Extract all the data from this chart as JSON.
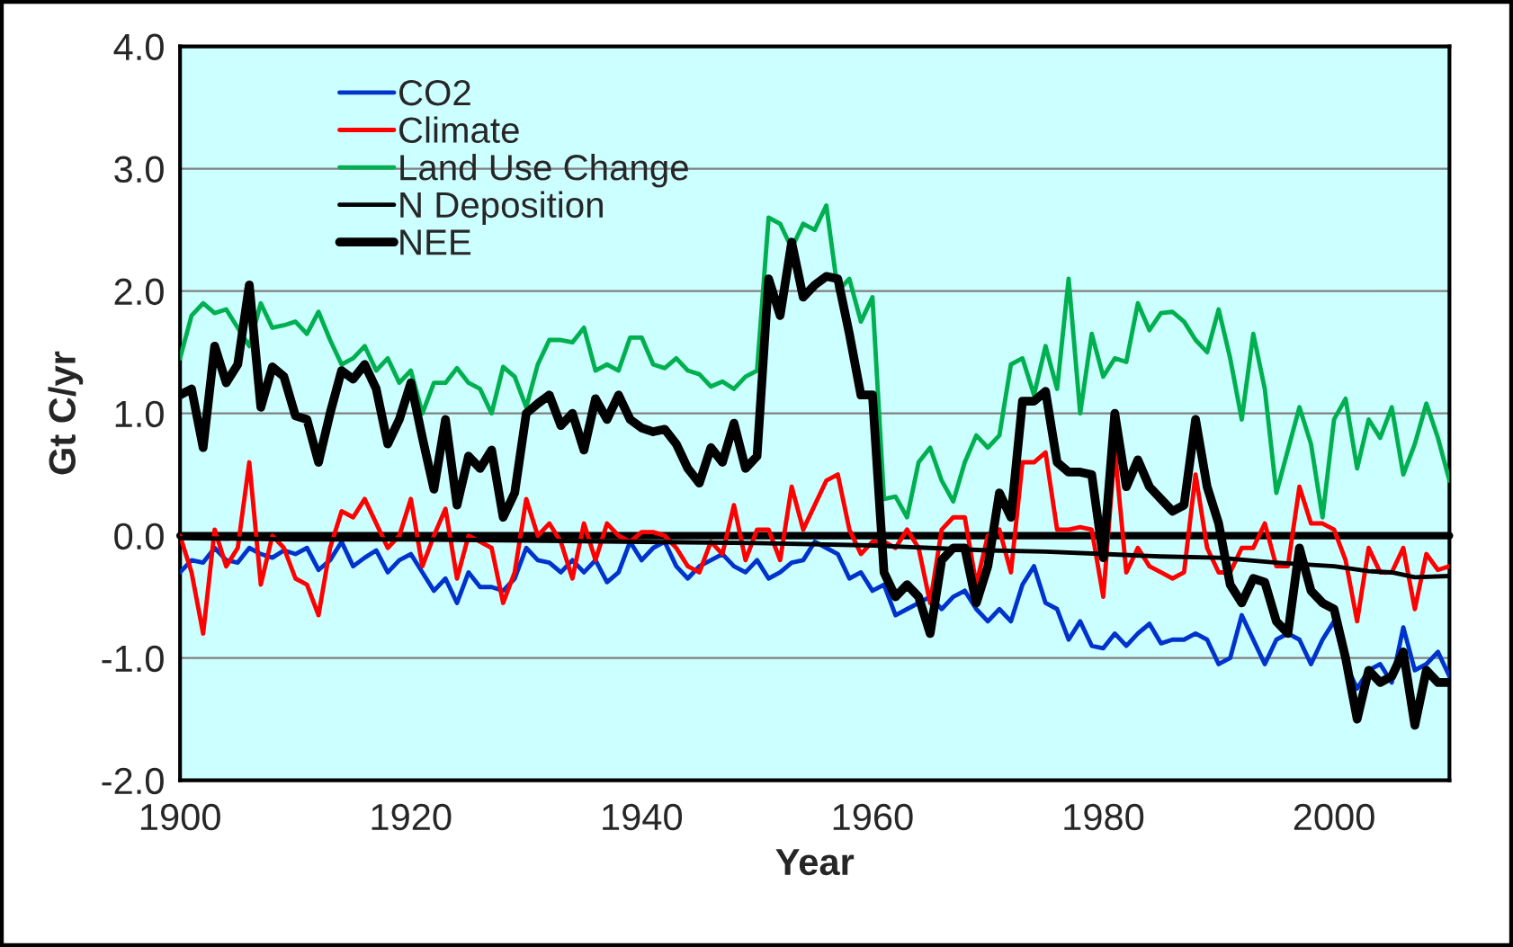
{
  "chart_data": {
    "type": "line",
    "xlabel": "Year",
    "ylabel": "Gt C/yr",
    "x": [
      1900,
      1901,
      1902,
      1903,
      1904,
      1905,
      1906,
      1907,
      1908,
      1909,
      1910,
      1911,
      1912,
      1913,
      1914,
      1915,
      1916,
      1917,
      1918,
      1919,
      1920,
      1921,
      1922,
      1923,
      1924,
      1925,
      1926,
      1927,
      1928,
      1929,
      1930,
      1931,
      1932,
      1933,
      1934,
      1935,
      1936,
      1937,
      1938,
      1939,
      1940,
      1941,
      1942,
      1943,
      1944,
      1945,
      1946,
      1947,
      1948,
      1949,
      1950,
      1951,
      1952,
      1953,
      1954,
      1955,
      1956,
      1957,
      1958,
      1959,
      1960,
      1961,
      1962,
      1963,
      1964,
      1965,
      1966,
      1967,
      1968,
      1969,
      1970,
      1971,
      1972,
      1973,
      1974,
      1975,
      1976,
      1977,
      1978,
      1979,
      1980,
      1981,
      1982,
      1983,
      1984,
      1985,
      1986,
      1987,
      1988,
      1989,
      1990,
      1991,
      1992,
      1993,
      1994,
      1995,
      1996,
      1997,
      1998,
      1999,
      2000,
      2001,
      2002,
      2003,
      2004,
      2005,
      2006,
      2007,
      2008,
      2009,
      2010
    ],
    "series": [
      {
        "name": "CO2",
        "color": "#0033cc",
        "values": [
          -0.3,
          -0.2,
          -0.22,
          -0.1,
          -0.2,
          -0.22,
          -0.1,
          -0.15,
          -0.18,
          -0.12,
          -0.15,
          -0.1,
          -0.28,
          -0.2,
          -0.05,
          -0.25,
          -0.18,
          -0.12,
          -0.3,
          -0.2,
          -0.15,
          -0.3,
          -0.45,
          -0.35,
          -0.55,
          -0.3,
          -0.42,
          -0.42,
          -0.45,
          -0.35,
          -0.1,
          -0.2,
          -0.22,
          -0.3,
          -0.2,
          -0.3,
          -0.2,
          -0.38,
          -0.3,
          -0.05,
          -0.2,
          -0.1,
          -0.05,
          -0.25,
          -0.35,
          -0.25,
          -0.2,
          -0.15,
          -0.25,
          -0.3,
          -0.2,
          -0.35,
          -0.3,
          -0.22,
          -0.2,
          -0.05,
          -0.1,
          -0.15,
          -0.35,
          -0.3,
          -0.45,
          -0.4,
          -0.65,
          -0.6,
          -0.55,
          -0.5,
          -0.6,
          -0.5,
          -0.45,
          -0.6,
          -0.7,
          -0.6,
          -0.7,
          -0.4,
          -0.25,
          -0.55,
          -0.6,
          -0.85,
          -0.7,
          -0.9,
          -0.92,
          -0.8,
          -0.9,
          -0.8,
          -0.72,
          -0.88,
          -0.85,
          -0.85,
          -0.8,
          -0.85,
          -1.05,
          -1.0,
          -0.65,
          -0.85,
          -1.05,
          -0.85,
          -0.8,
          -0.85,
          -1.05,
          -0.85,
          -0.7,
          -1.05,
          -1.25,
          -1.1,
          -1.05,
          -1.2,
          -0.75,
          -1.1,
          -1.05,
          -0.95,
          -1.15
        ]
      },
      {
        "name": "Climate",
        "color": "#ff0000",
        "values": [
          0.0,
          -0.3,
          -0.8,
          0.05,
          -0.25,
          -0.1,
          0.6,
          -0.4,
          0.0,
          -0.1,
          -0.35,
          -0.4,
          -0.65,
          -0.1,
          0.2,
          0.15,
          0.3,
          0.1,
          -0.1,
          0.0,
          0.3,
          -0.25,
          0.0,
          0.22,
          -0.35,
          0.0,
          -0.05,
          -0.1,
          -0.55,
          -0.3,
          0.3,
          0.0,
          0.1,
          -0.05,
          -0.35,
          0.1,
          -0.2,
          0.1,
          0.0,
          -0.05,
          0.03,
          0.03,
          0.0,
          -0.1,
          -0.25,
          -0.3,
          -0.05,
          -0.15,
          0.25,
          -0.2,
          0.05,
          0.05,
          -0.2,
          0.4,
          0.05,
          0.25,
          0.45,
          0.5,
          0.05,
          -0.15,
          -0.05,
          -0.05,
          -0.1,
          0.05,
          -0.1,
          -0.55,
          0.05,
          0.15,
          0.15,
          -0.4,
          0.0,
          0.05,
          -0.3,
          0.6,
          0.6,
          0.68,
          0.05,
          0.05,
          0.07,
          0.05,
          -0.5,
          0.7,
          -0.3,
          -0.1,
          -0.25,
          -0.3,
          -0.35,
          -0.3,
          0.5,
          -0.1,
          -0.3,
          -0.3,
          -0.1,
          -0.1,
          0.1,
          -0.25,
          -0.25,
          0.4,
          0.1,
          0.1,
          0.05,
          -0.2,
          -0.7,
          -0.1,
          -0.3,
          -0.3,
          -0.1,
          -0.6,
          -0.15,
          -0.28,
          -0.25
        ]
      },
      {
        "name": "Land Use Change",
        "color": "#00b050",
        "values": [
          1.45,
          1.8,
          1.9,
          1.82,
          1.85,
          1.7,
          1.55,
          1.9,
          1.7,
          1.72,
          1.75,
          1.65,
          1.83,
          1.6,
          1.4,
          1.45,
          1.55,
          1.35,
          1.45,
          1.25,
          1.35,
          1.0,
          1.25,
          1.25,
          1.37,
          1.25,
          1.2,
          1.0,
          1.38,
          1.3,
          1.05,
          1.4,
          1.6,
          1.6,
          1.58,
          1.7,
          1.35,
          1.4,
          1.35,
          1.62,
          1.62,
          1.4,
          1.37,
          1.45,
          1.35,
          1.32,
          1.22,
          1.26,
          1.2,
          1.3,
          1.35,
          2.6,
          2.55,
          2.35,
          2.55,
          2.5,
          2.7,
          2.0,
          2.1,
          1.75,
          1.95,
          0.3,
          0.32,
          0.15,
          0.6,
          0.72,
          0.45,
          0.28,
          0.6,
          0.82,
          0.72,
          0.82,
          1.4,
          1.45,
          1.15,
          1.55,
          1.2,
          2.1,
          1.0,
          1.65,
          1.3,
          1.45,
          1.42,
          1.9,
          1.68,
          1.82,
          1.83,
          1.75,
          1.6,
          1.5,
          1.85,
          1.45,
          0.95,
          1.65,
          1.2,
          0.35,
          0.7,
          1.05,
          0.75,
          0.15,
          0.95,
          1.12,
          0.55,
          0.95,
          0.8,
          1.05,
          0.5,
          0.75,
          1.08,
          0.8,
          0.45
        ]
      },
      {
        "name": "N Deposition",
        "color": "#000000",
        "x": [
          1900,
          1910,
          1920,
          1930,
          1940,
          1950,
          1960,
          1965,
          1970,
          1975,
          1980,
          1985,
          1990,
          1995,
          2000,
          2003,
          2005,
          2007,
          2010
        ],
        "values": [
          -0.02,
          -0.03,
          -0.03,
          -0.04,
          -0.05,
          -0.06,
          -0.08,
          -0.1,
          -0.12,
          -0.13,
          -0.15,
          -0.17,
          -0.18,
          -0.22,
          -0.25,
          -0.29,
          -0.3,
          -0.34,
          -0.33
        ]
      },
      {
        "name": "NEE",
        "color": "#000000",
        "values": [
          1.15,
          1.2,
          0.72,
          1.55,
          1.25,
          1.4,
          2.05,
          1.05,
          1.38,
          1.3,
          0.98,
          0.95,
          0.6,
          1.0,
          1.35,
          1.28,
          1.4,
          1.2,
          0.75,
          0.95,
          1.25,
          0.8,
          0.38,
          0.95,
          0.25,
          0.65,
          0.55,
          0.7,
          0.15,
          0.35,
          1.0,
          1.08,
          1.15,
          0.9,
          1.0,
          0.7,
          1.12,
          0.95,
          1.15,
          0.95,
          0.88,
          0.85,
          0.87,
          0.75,
          0.55,
          0.43,
          0.72,
          0.6,
          0.92,
          0.55,
          0.65,
          2.1,
          1.8,
          2.4,
          1.95,
          2.05,
          2.12,
          2.1,
          1.65,
          1.15,
          1.15,
          -0.3,
          -0.5,
          -0.4,
          -0.5,
          -0.8,
          -0.2,
          -0.1,
          -0.1,
          -0.55,
          -0.25,
          0.35,
          0.15,
          1.1,
          1.1,
          1.18,
          0.6,
          0.52,
          0.52,
          0.5,
          -0.18,
          1.0,
          0.4,
          0.62,
          0.4,
          0.3,
          0.2,
          0.25,
          0.95,
          0.4,
          0.1,
          -0.4,
          -0.55,
          -0.35,
          -0.38,
          -0.7,
          -0.8,
          -0.1,
          -0.45,
          -0.55,
          -0.6,
          -1.0,
          -1.5,
          -1.1,
          -1.2,
          -1.15,
          -0.95,
          -1.55,
          -1.1,
          -1.2,
          -1.2
        ]
      }
    ],
    "xlim": [
      1900,
      2010
    ],
    "xticks": [
      1900,
      1920,
      1940,
      1960,
      1980,
      2000
    ],
    "ylim": [
      -2.0,
      4.0
    ],
    "yticks": [
      {
        "value": -2.0,
        "label": "-2.0"
      },
      {
        "value": -1.0,
        "label": "-1.0"
      },
      {
        "value": 0.0,
        "label": "0.0"
      },
      {
        "value": 1.0,
        "label": "1.0"
      },
      {
        "value": 2.0,
        "label": "2.0"
      },
      {
        "value": 3.0,
        "label": "3.0"
      },
      {
        "value": 4.0,
        "label": "4.0"
      }
    ],
    "ref_lines": [
      {
        "axis": "y",
        "value": 0.0,
        "color": "#000000"
      }
    ],
    "grid": "y",
    "legend": "top left",
    "marker": "none",
    "line_style": "solid"
  }
}
